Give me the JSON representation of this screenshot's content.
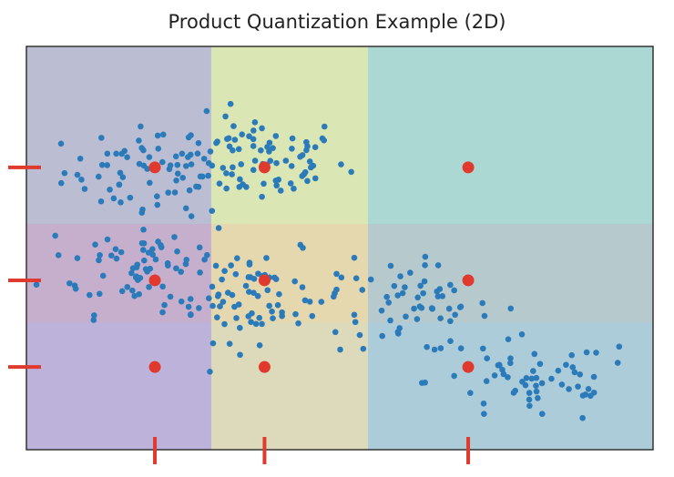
{
  "chart_data": {
    "type": "scatter",
    "title": "Product Quantization Example (2D)",
    "xlabel": "",
    "ylabel": "",
    "xlim": [
      0,
      10
    ],
    "ylim": [
      0,
      10
    ],
    "grid": false,
    "legend": "none",
    "colors": {
      "points": "#2b7bba",
      "centroids": "#e03a2f",
      "ticks": "#e03a2f",
      "frame": "#333333"
    },
    "x_codebook": [
      2.05,
      3.8,
      7.05
    ],
    "y_codebook": [
      2.05,
      4.2,
      7.0
    ],
    "x_boundaries": [
      2.95,
      5.45
    ],
    "y_boundaries": [
      3.15,
      5.6
    ],
    "regions": {
      "x_colors": [
        "#9b82c0",
        "#f1f169",
        "#70cbbf"
      ],
      "y_colors": [
        "#a8a2d6",
        "#c39ab1",
        "#a3c5bf"
      ]
    },
    "centroids": [
      {
        "x": 2.05,
        "y": 7.0
      },
      {
        "x": 3.8,
        "y": 7.0
      },
      {
        "x": 7.05,
        "y": 7.0
      },
      {
        "x": 2.05,
        "y": 4.2
      },
      {
        "x": 3.8,
        "y": 4.2
      },
      {
        "x": 7.05,
        "y": 4.2
      },
      {
        "x": 2.05,
        "y": 2.05
      },
      {
        "x": 3.8,
        "y": 2.05
      },
      {
        "x": 7.05,
        "y": 2.05
      }
    ],
    "clusters": [
      {
        "cx": 2.1,
        "cy": 6.9,
        "sx": 0.75,
        "sy": 0.55,
        "n": 70
      },
      {
        "cx": 3.7,
        "cy": 7.2,
        "sx": 0.7,
        "sy": 0.55,
        "n": 75
      },
      {
        "cx": 1.9,
        "cy": 4.6,
        "sx": 0.8,
        "sy": 0.6,
        "n": 70
      },
      {
        "cx": 3.7,
        "cy": 3.8,
        "sx": 0.75,
        "sy": 0.55,
        "n": 80
      },
      {
        "cx": 6.2,
        "cy": 3.5,
        "sx": 0.6,
        "sy": 0.55,
        "n": 55
      },
      {
        "cx": 8.1,
        "cy": 1.7,
        "sx": 0.85,
        "sy": 0.55,
        "n": 60
      }
    ]
  }
}
